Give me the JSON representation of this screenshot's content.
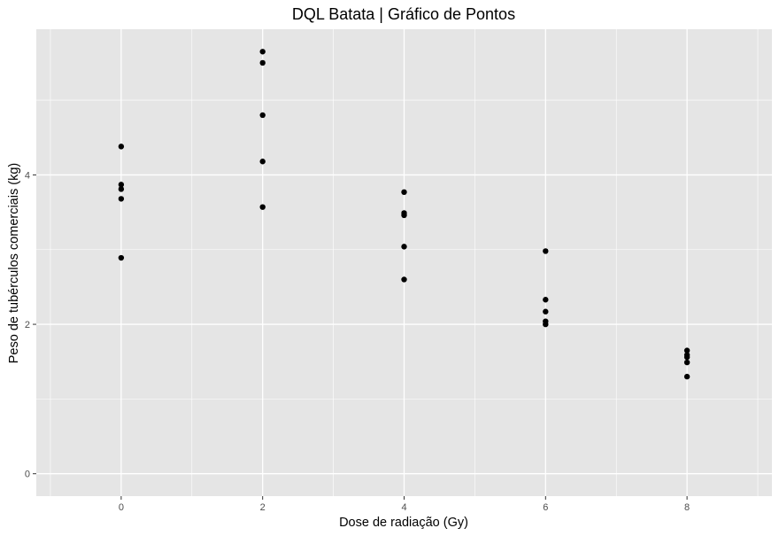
{
  "chart_data": {
    "type": "scatter",
    "title": "DQL Batata | Gráfico de Pontos",
    "xlabel": "Dose de radiação (Gy)",
    "ylabel": "Peso de tubérculos comerciais (kg)",
    "xlim": [
      -1.2,
      9.2
    ],
    "ylim": [
      -0.3,
      5.95
    ],
    "xticks": [
      0,
      2,
      4,
      6,
      8
    ],
    "yticks": [
      0,
      2,
      4
    ],
    "grid": true,
    "legend": "none",
    "colors": {
      "panel": "#e5e5e5",
      "grid": "#ffffff",
      "point": "#000000"
    },
    "points": [
      {
        "x": 0,
        "y": 4.38
      },
      {
        "x": 0,
        "y": 3.87
      },
      {
        "x": 0,
        "y": 3.81
      },
      {
        "x": 0,
        "y": 3.68
      },
      {
        "x": 0,
        "y": 2.89
      },
      {
        "x": 2,
        "y": 5.65
      },
      {
        "x": 2,
        "y": 5.5
      },
      {
        "x": 2,
        "y": 4.8
      },
      {
        "x": 2,
        "y": 4.18
      },
      {
        "x": 2,
        "y": 3.57
      },
      {
        "x": 4,
        "y": 3.77
      },
      {
        "x": 4,
        "y": 3.49
      },
      {
        "x": 4,
        "y": 3.46
      },
      {
        "x": 4,
        "y": 3.04
      },
      {
        "x": 4,
        "y": 2.6
      },
      {
        "x": 6,
        "y": 2.98
      },
      {
        "x": 6,
        "y": 2.33
      },
      {
        "x": 6,
        "y": 2.17
      },
      {
        "x": 6,
        "y": 2.04
      },
      {
        "x": 6,
        "y": 2.0
      },
      {
        "x": 8,
        "y": 1.65
      },
      {
        "x": 8,
        "y": 1.59
      },
      {
        "x": 8,
        "y": 1.56
      },
      {
        "x": 8,
        "y": 1.49
      },
      {
        "x": 8,
        "y": 1.3
      }
    ]
  }
}
